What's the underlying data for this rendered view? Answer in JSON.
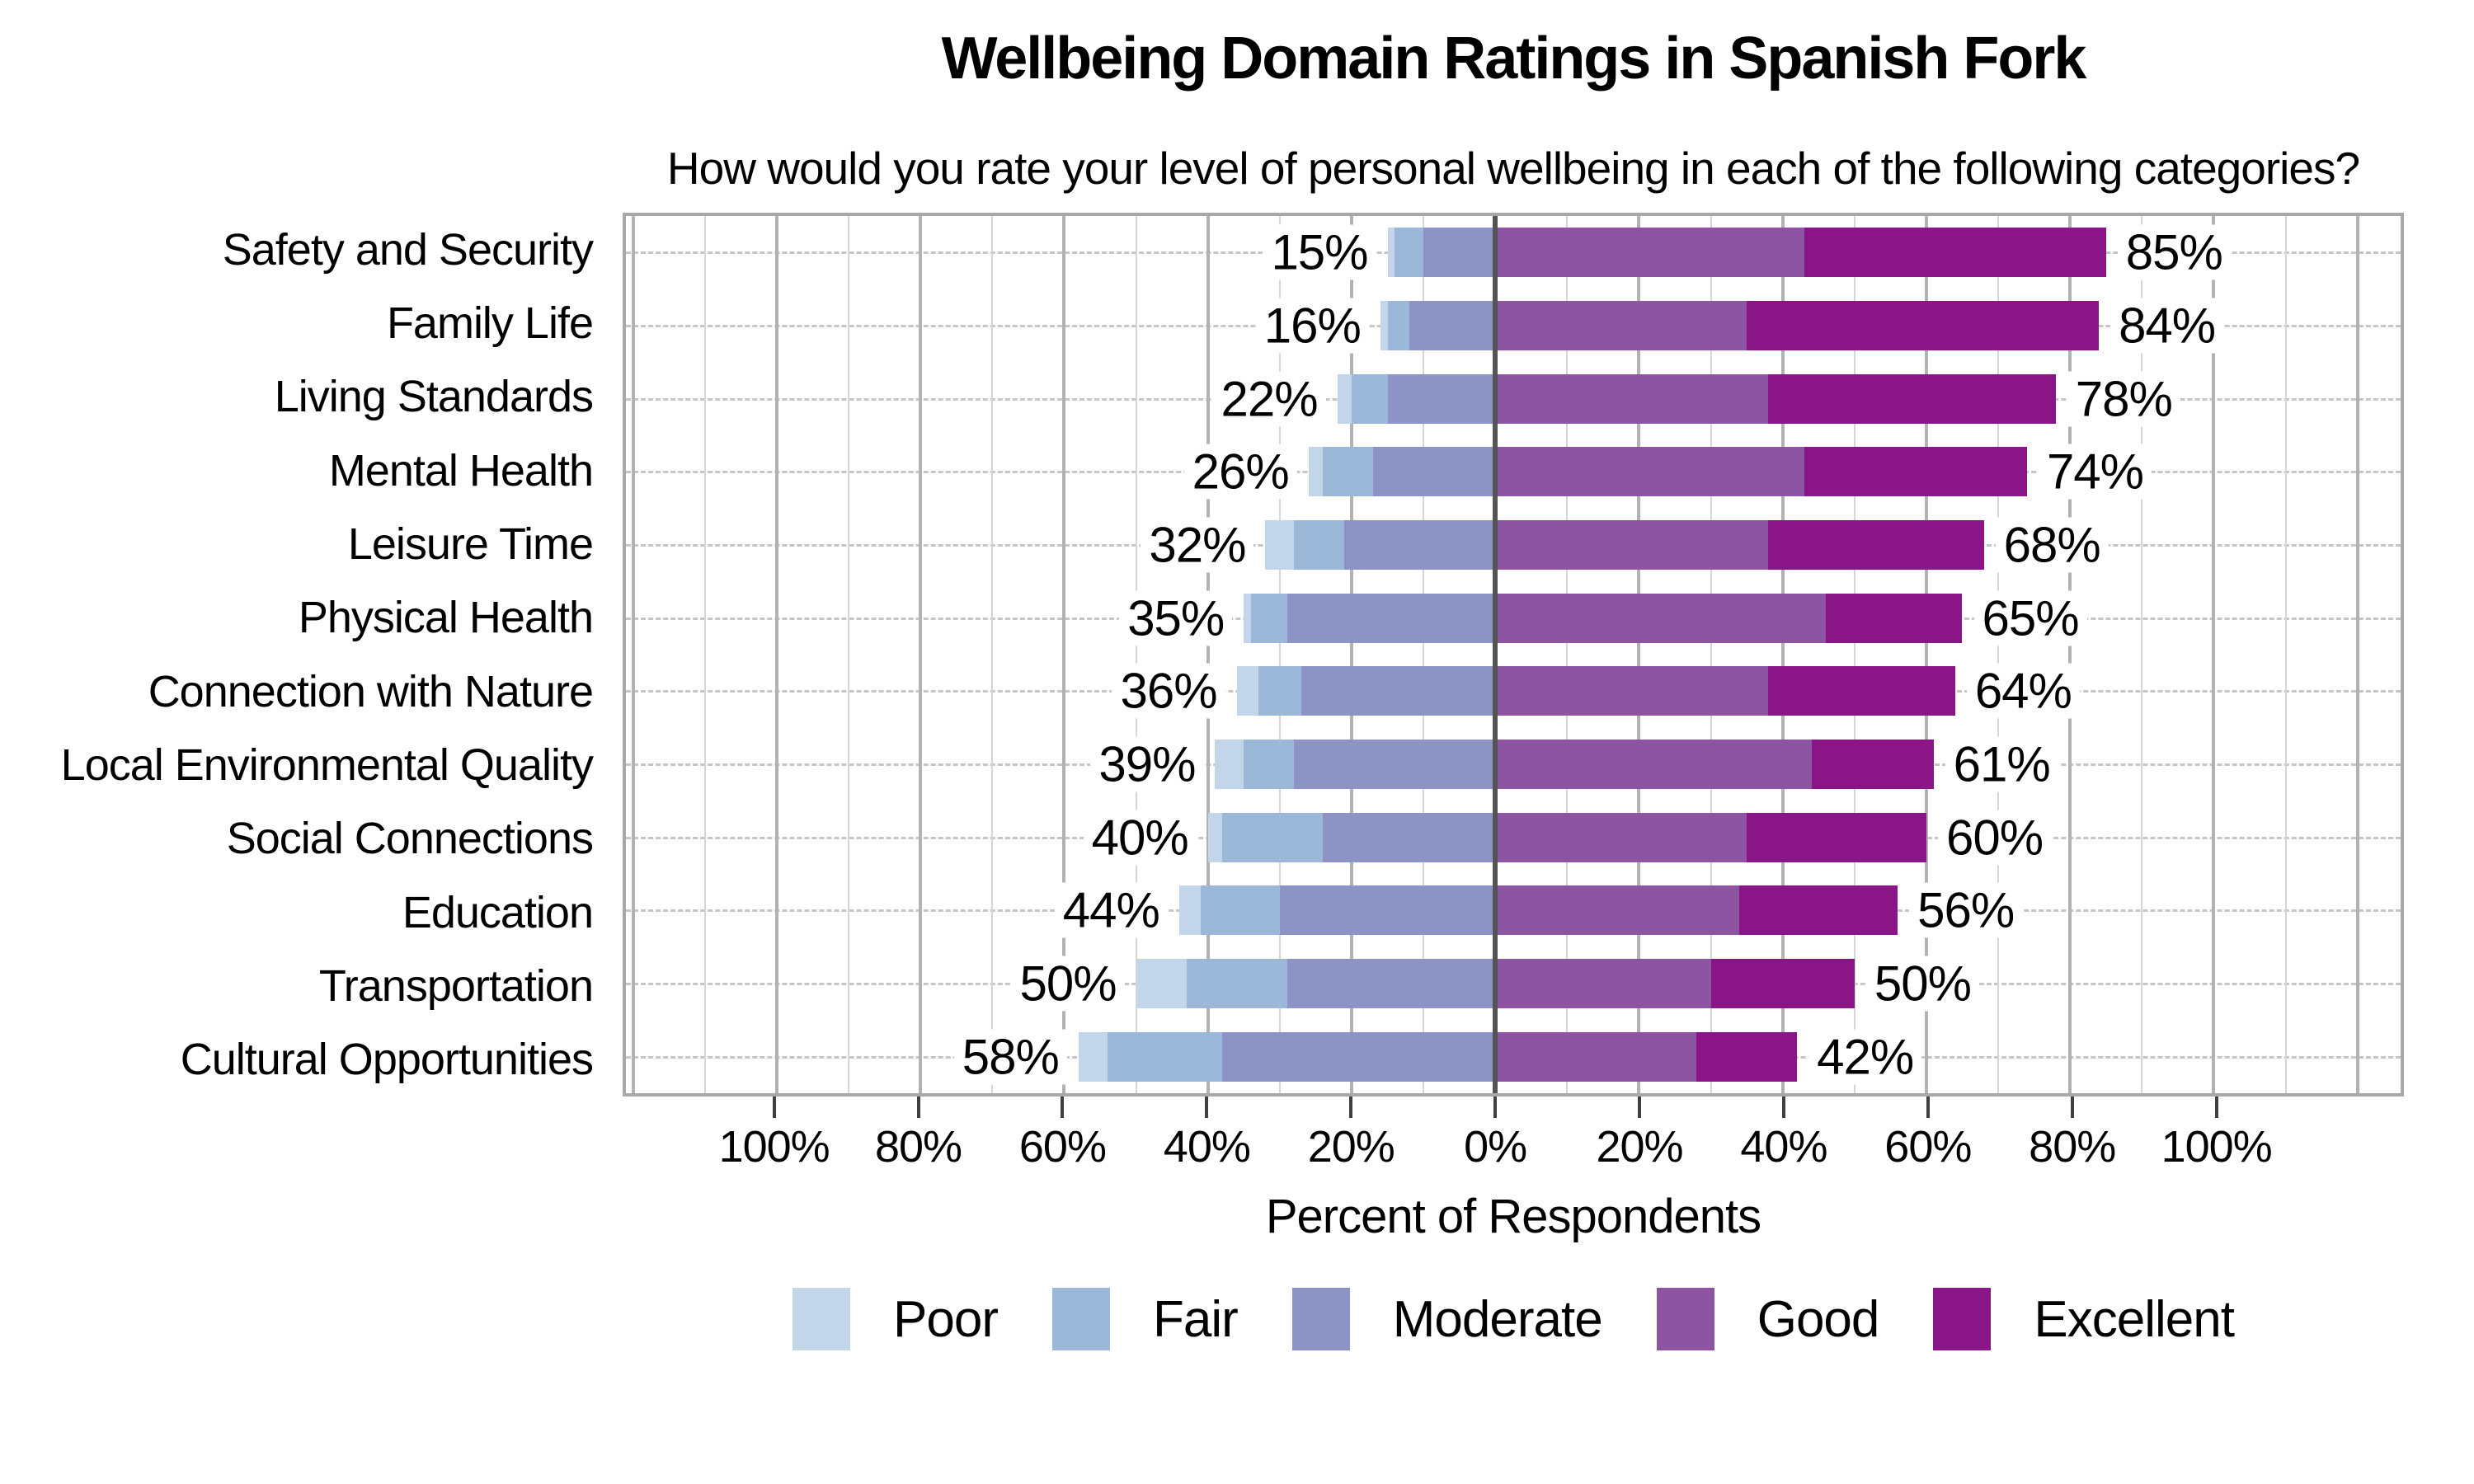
{
  "title": "Wellbeing Domain Ratings in Spanish Fork",
  "subtitle": "How would you rate your level of personal wellbeing in each of the following categories?",
  "chart_data": {
    "type": "bar",
    "variant": "horizontal-diverging-stacked",
    "title": "Wellbeing Domain Ratings in Spanish Fork",
    "subtitle": "How would you rate your level of personal wellbeing in each of the following categories?",
    "xlabel": "Percent of Respondents",
    "categories": [
      "Safety and Security",
      "Family Life",
      "Living Standards",
      "Mental Health",
      "Leisure Time",
      "Physical Health",
      "Connection with Nature",
      "Local Environmental Quality",
      "Social Connections",
      "Education",
      "Transportation",
      "Cultural Opportunities"
    ],
    "series": [
      {
        "name": "Poor",
        "side": "negative",
        "color": "#c3d5e8",
        "values": [
          1,
          1,
          2,
          2,
          4,
          1,
          3,
          4,
          2,
          3,
          7,
          4
        ]
      },
      {
        "name": "Fair",
        "side": "negative",
        "color": "#9cb8d8",
        "values": [
          4,
          3,
          5,
          7,
          7,
          5,
          6,
          7,
          14,
          11,
          14,
          16
        ]
      },
      {
        "name": "Moderate",
        "side": "negative",
        "color": "#8e93c6",
        "values": [
          10,
          12,
          15,
          17,
          21,
          29,
          27,
          28,
          24,
          30,
          29,
          38
        ]
      },
      {
        "name": "Good",
        "side": "positive",
        "color": "#8c54a1",
        "values": [
          43,
          35,
          38,
          43,
          38,
          46,
          38,
          44,
          35,
          34,
          30,
          28
        ]
      },
      {
        "name": "Excellent",
        "side": "positive",
        "color": "#8a1586",
        "values": [
          42,
          49,
          40,
          31,
          30,
          19,
          26,
          17,
          25,
          22,
          20,
          14
        ]
      }
    ],
    "left_total_labels": [
      "15%",
      "16%",
      "22%",
      "26%",
      "32%",
      "35%",
      "36%",
      "39%",
      "40%",
      "44%",
      "50%",
      "58%"
    ],
    "right_total_labels": [
      "85%",
      "84%",
      "78%",
      "74%",
      "68%",
      "65%",
      "64%",
      "61%",
      "60%",
      "56%",
      "50%",
      "42%"
    ],
    "x_axis": {
      "min": -121,
      "max": 126,
      "minor_step": 10,
      "major_step": 20,
      "tick_values": [
        -100,
        -80,
        -60,
        -40,
        -20,
        0,
        20,
        40,
        60,
        80,
        100
      ],
      "tick_labels": [
        "100%",
        "80%",
        "60%",
        "40%",
        "20%",
        "0%",
        "20%",
        "40%",
        "60%",
        "80%",
        "100%"
      ]
    },
    "legend": [
      "Poor",
      "Fair",
      "Moderate",
      "Good",
      "Excellent"
    ],
    "legend_position": "bottom",
    "grid": "on",
    "colors": {
      "poor": "#c3d5e8",
      "fair": "#9cb8d8",
      "moderate": "#8e93c6",
      "good": "#8c54a1",
      "excellent": "#8a1586",
      "zero_line": "#545454",
      "grid_minor": "#d6d6d6",
      "grid_major": "#b2b2b2",
      "plot_border": "#a8a8a8"
    }
  }
}
